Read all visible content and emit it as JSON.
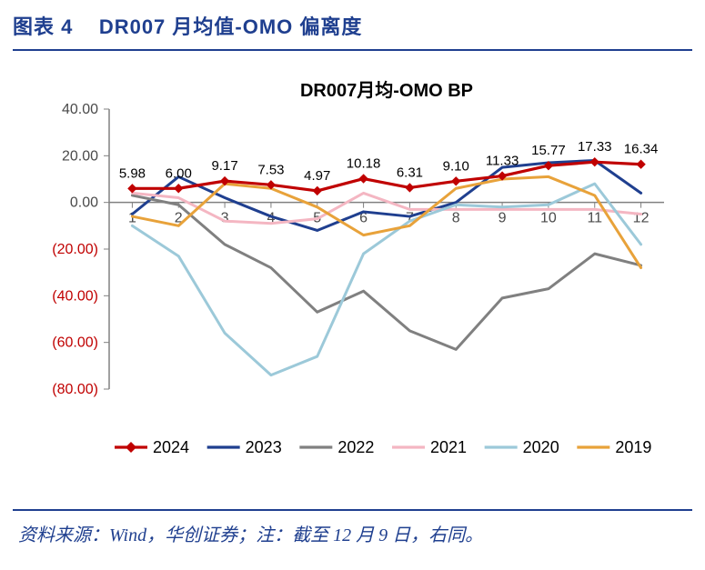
{
  "header": {
    "label": "图表 4",
    "title": "DR007 月均值-OMO 偏离度"
  },
  "source": "资料来源：Wind，华创证券；注：截至 12 月 9 日，右同。",
  "chart": {
    "type": "line",
    "title": "DR007月均-OMO BP",
    "title_fontsize": 20,
    "title_color": "#000000",
    "background_color": "#ffffff",
    "plot_border_color": "#808080",
    "grid_color": "#c0c0c0",
    "axis_tick_color": "#808080",
    "tick_font_color": "#4a4a4a",
    "tick_fontsize": 16,
    "x_categories": [
      "1",
      "2",
      "3",
      "4",
      "5",
      "6",
      "7",
      "8",
      "9",
      "10",
      "11",
      "12"
    ],
    "ylim": [
      -80,
      40
    ],
    "yticks": [
      -80,
      -60,
      -40,
      -20,
      0,
      20,
      40
    ],
    "ytick_labels": [
      "(80.00)",
      "(60.00)",
      "(40.00)",
      "(20.00)",
      "0.00",
      "20.00",
      "40.00"
    ],
    "neg_label_color": "#c00000",
    "pos_label_color": "#4a4a4a",
    "series": [
      {
        "name": "2024",
        "color": "#c00000",
        "width": 3.2,
        "marker": "diamond",
        "marker_size": 9,
        "values": [
          5.98,
          6.0,
          9.17,
          7.53,
          4.97,
          10.18,
          6.31,
          9.1,
          11.33,
          15.77,
          17.33,
          16.34
        ],
        "data_labels": [
          5.98,
          6.0,
          9.17,
          7.53,
          4.97,
          10.18,
          6.31,
          9.1,
          11.33,
          15.77,
          17.33,
          16.34
        ]
      },
      {
        "name": "2023",
        "color": "#1f3f8f",
        "width": 3.0,
        "marker": null,
        "values": [
          -5,
          11,
          2,
          -6,
          -12,
          -4,
          -6,
          0,
          15,
          17,
          18,
          4
        ]
      },
      {
        "name": "2022",
        "color": "#808080",
        "width": 3.0,
        "marker": null,
        "values": [
          3,
          -1,
          -18,
          -28,
          -47,
          -38,
          -55,
          -63,
          -41,
          -37,
          -22,
          -27
        ]
      },
      {
        "name": "2021",
        "color": "#f4b6c2",
        "width": 3.0,
        "marker": null,
        "values": [
          4,
          2,
          -8,
          -9,
          -7,
          4,
          -3,
          -3,
          -3,
          -3,
          -3,
          -5
        ]
      },
      {
        "name": "2020",
        "color": "#9cc9d9",
        "width": 3.0,
        "marker": null,
        "values": [
          -10,
          -23,
          -56,
          -74,
          -66,
          -22,
          -8,
          -1,
          -2,
          -1,
          8,
          -18
        ]
      },
      {
        "name": "2019",
        "color": "#e8a23a",
        "width": 3.0,
        "marker": null,
        "values": [
          -6,
          -10,
          8,
          6,
          -2,
          -14,
          -10,
          6,
          10,
          11,
          3,
          -28
        ]
      }
    ],
    "legend": {
      "fontsize": 18,
      "items": [
        {
          "name": "2024",
          "color": "#c00000",
          "marker": "diamond"
        },
        {
          "name": "2023",
          "color": "#1f3f8f"
        },
        {
          "name": "2022",
          "color": "#808080"
        },
        {
          "name": "2021",
          "color": "#f4b6c2"
        },
        {
          "name": "2020",
          "color": "#9cc9d9"
        },
        {
          "name": "2019",
          "color": "#e8a23a"
        }
      ]
    }
  }
}
